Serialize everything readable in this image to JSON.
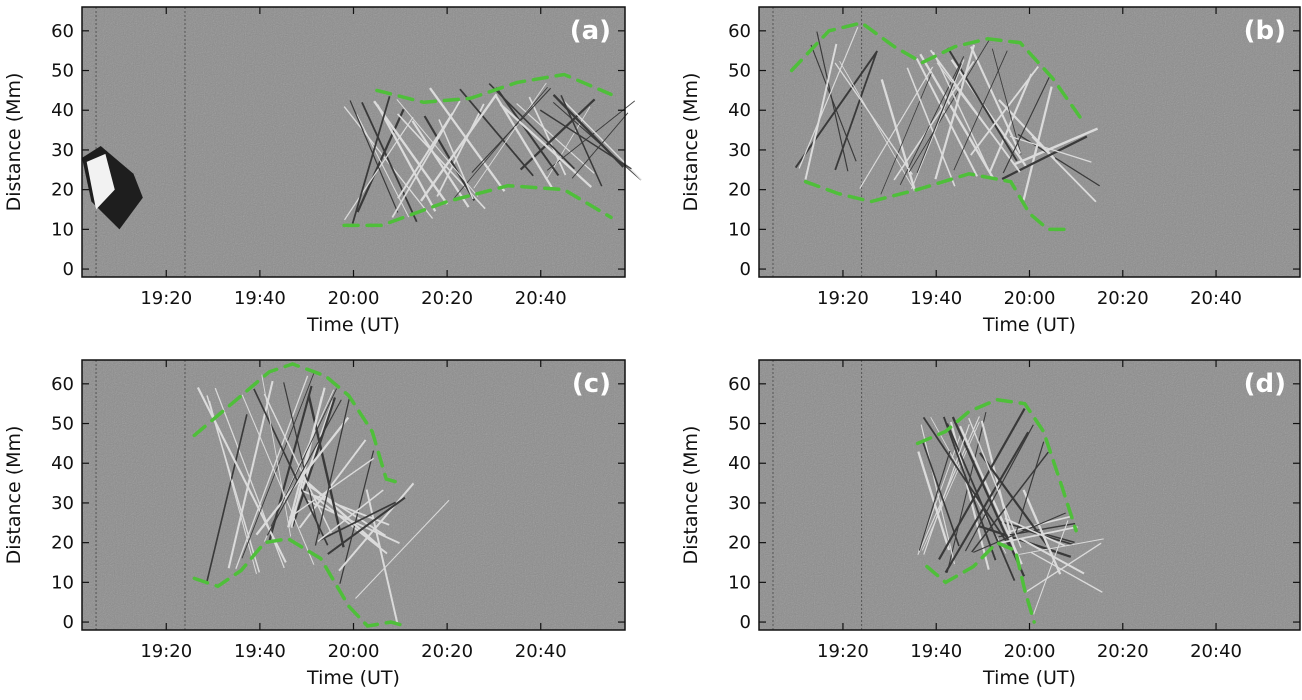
{
  "chart_data": [
    {
      "type": "heatmap",
      "panel_label": "(a)",
      "xlabel": "Time (UT)",
      "ylabel": "Distance (Mm)",
      "x_ticks": [
        "19:20",
        "19:40",
        "20:00",
        "20:20",
        "20:40"
      ],
      "y_ticks": [
        "0",
        "10",
        "20",
        "30",
        "40",
        "50",
        "60"
      ],
      "xlim": [
        "19:02",
        "20:58"
      ],
      "ylim": [
        -2,
        66
      ],
      "envelopes": [
        {
          "points": [
            [
              "20:05",
              45
            ],
            [
              "20:15",
              42
            ],
            [
              "20:25",
              43
            ],
            [
              "20:35",
              47
            ],
            [
              "20:45",
              49
            ],
            [
              "20:55",
              44
            ]
          ]
        },
        {
          "points": [
            [
              "19:58",
              11
            ],
            [
              "20:06",
              11
            ],
            [
              "20:20",
              17
            ],
            [
              "20:33",
              21
            ],
            [
              "20:45",
              20
            ],
            [
              "20:55",
              13
            ]
          ]
        }
      ]
    },
    {
      "type": "heatmap",
      "panel_label": "(b)",
      "xlabel": "Time (UT)",
      "ylabel": "Distance (Mm)",
      "x_ticks": [
        "19:20",
        "19:40",
        "20:00",
        "20:20",
        "20:40"
      ],
      "y_ticks": [
        "0",
        "10",
        "20",
        "30",
        "40",
        "50",
        "60"
      ],
      "xlim": [
        "19:02",
        "20:58"
      ],
      "ylim": [
        -2,
        66
      ],
      "envelopes": [
        {
          "points": [
            [
              "19:09",
              50
            ],
            [
              "19:17",
              60
            ],
            [
              "19:24",
              62
            ],
            [
              "19:31",
              56
            ],
            [
              "19:37",
              52
            ],
            [
              "19:44",
              56
            ],
            [
              "19:51",
              58
            ],
            [
              "19:58",
              57
            ],
            [
              "20:05",
              48
            ],
            [
              "20:11",
              38
            ]
          ]
        },
        {
          "points": [
            [
              "19:12",
              22
            ],
            [
              "19:19",
              19
            ],
            [
              "19:26",
              17
            ],
            [
              "19:36",
              20
            ],
            [
              "19:47",
              24
            ],
            [
              "19:56",
              22
            ],
            [
              "20:00",
              14
            ],
            [
              "20:04",
              10
            ],
            [
              "20:09",
              10
            ]
          ]
        }
      ]
    },
    {
      "type": "heatmap",
      "panel_label": "(c)",
      "xlabel": "Time (UT)",
      "ylabel": "Distance (Mm)",
      "x_ticks": [
        "19:20",
        "19:40",
        "20:00",
        "20:20",
        "20:40"
      ],
      "y_ticks": [
        "0",
        "10",
        "20",
        "30",
        "40",
        "50",
        "60"
      ],
      "xlim": [
        "19:02",
        "20:58"
      ],
      "ylim": [
        -2,
        66
      ],
      "envelopes": [
        {
          "points": [
            [
              "19:26",
              47
            ],
            [
              "19:34",
              55
            ],
            [
              "19:42",
              63
            ],
            [
              "19:47",
              65
            ],
            [
              "19:54",
              62
            ],
            [
              "19:59",
              57
            ],
            [
              "20:04",
              48
            ],
            [
              "20:07",
              36
            ],
            [
              "20:10",
              35
            ]
          ]
        },
        {
          "points": [
            [
              "19:26",
              11
            ],
            [
              "19:31",
              9
            ],
            [
              "19:36",
              13
            ],
            [
              "19:41",
              20
            ],
            [
              "19:46",
              21
            ],
            [
              "19:53",
              16
            ],
            [
              "19:59",
              4
            ],
            [
              "20:03",
              -1
            ],
            [
              "20:08",
              0
            ],
            [
              "20:11",
              -1
            ]
          ]
        }
      ]
    },
    {
      "type": "heatmap",
      "panel_label": "(d)",
      "xlabel": "Time (UT)",
      "ylabel": "Distance (Mm)",
      "x_ticks": [
        "19:20",
        "19:40",
        "20:00",
        "20:20",
        "20:40"
      ],
      "y_ticks": [
        "0",
        "10",
        "20",
        "30",
        "40",
        "50",
        "60"
      ],
      "xlim": [
        "19:02",
        "20:58"
      ],
      "ylim": [
        -2,
        66
      ],
      "envelopes": [
        {
          "points": [
            [
              "19:36",
              45
            ],
            [
              "19:42",
              48
            ],
            [
              "19:47",
              53
            ],
            [
              "19:53",
              56
            ],
            [
              "19:59",
              55
            ],
            [
              "20:03",
              48
            ],
            [
              "20:07",
              34
            ],
            [
              "20:10",
              23
            ]
          ]
        },
        {
          "points": [
            [
              "19:38",
              14
            ],
            [
              "19:42",
              10
            ],
            [
              "19:48",
              14
            ],
            [
              "19:53",
              20
            ],
            [
              "19:57",
              18
            ],
            [
              "19:59",
              8
            ],
            [
              "20:01",
              0
            ]
          ]
        }
      ]
    }
  ]
}
